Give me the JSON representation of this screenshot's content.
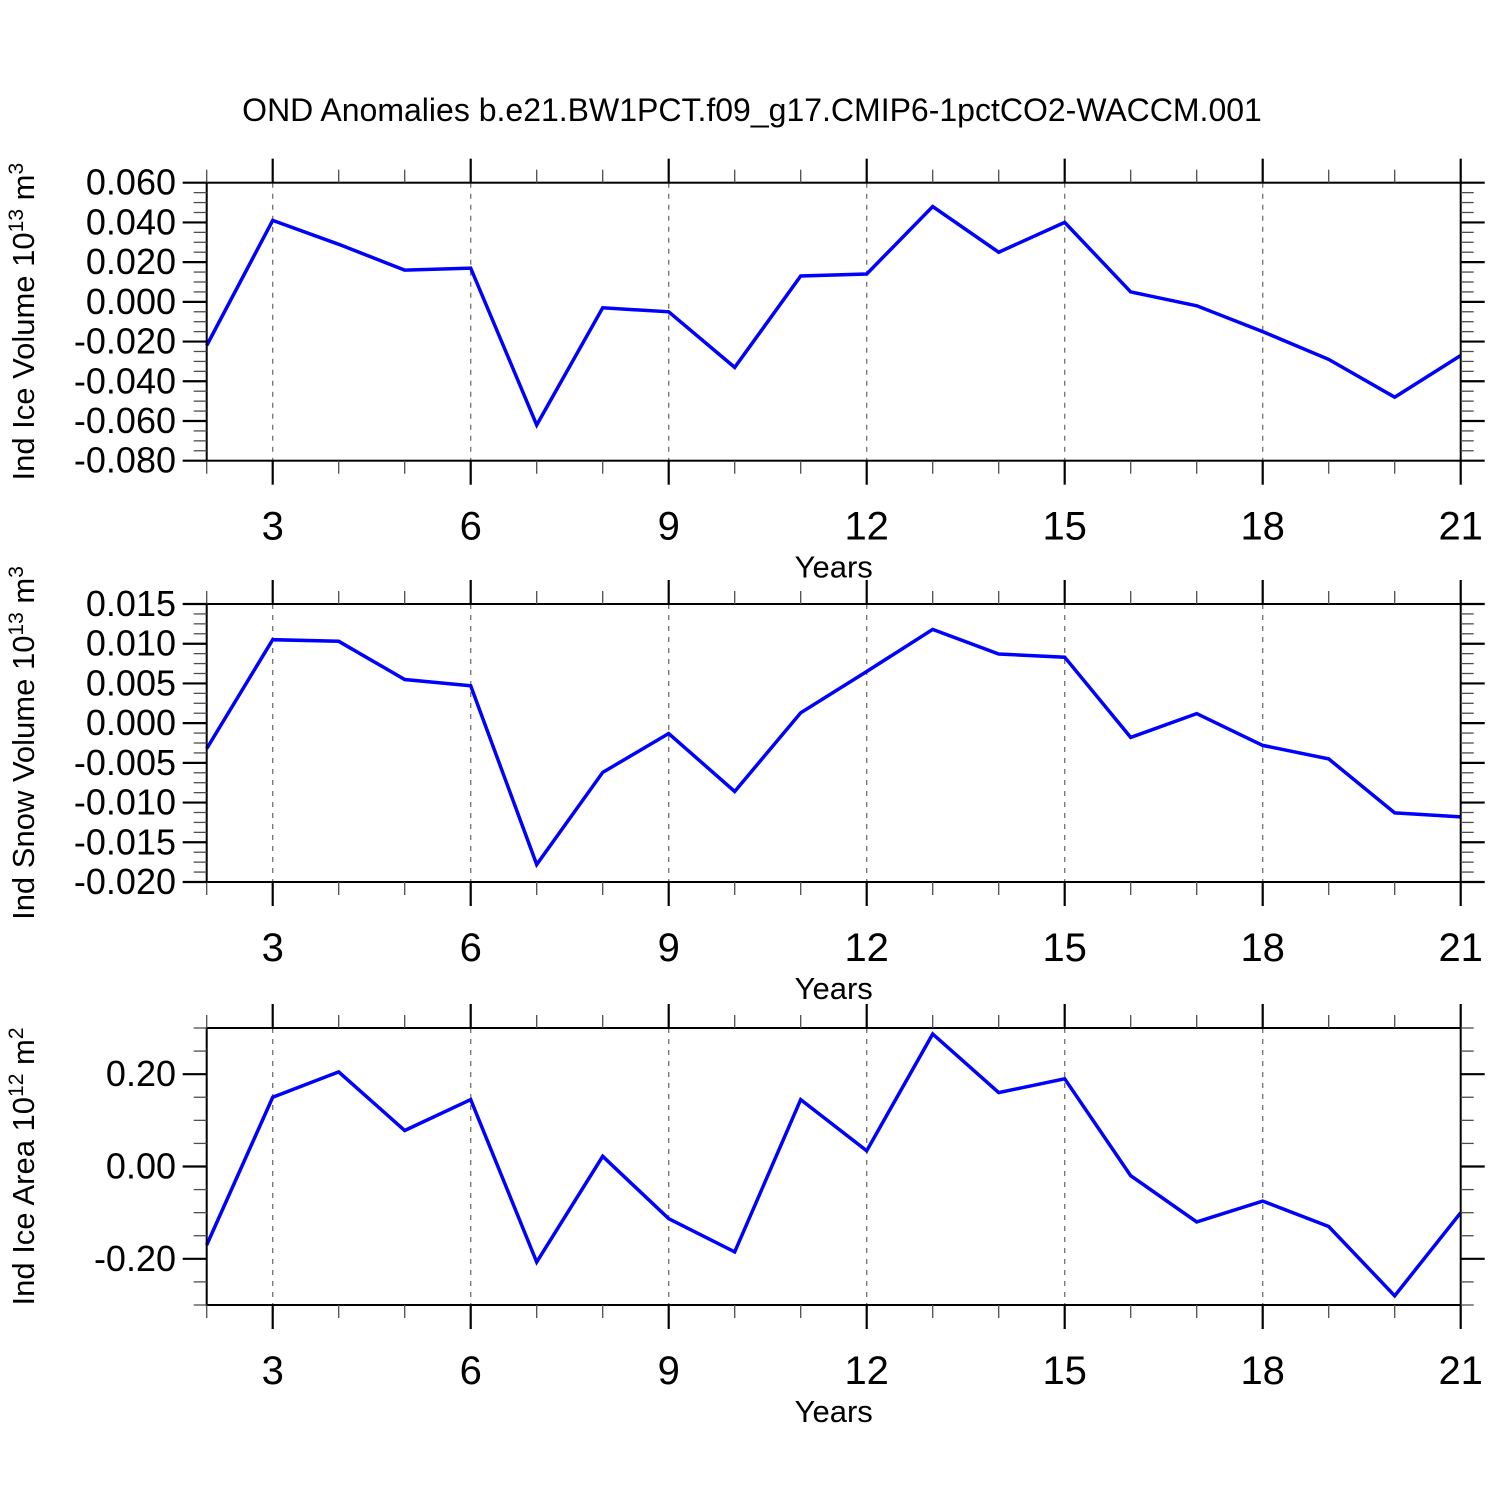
{
  "title": "OND Anomalies b.e21.BW1PCT.f09_g17.CMIP6-1pctCO2-WACCM.001",
  "line_color": "#0000ff",
  "chart_data": [
    {
      "type": "line",
      "name": "ice-volume",
      "title": "",
      "ylabel": "Ind Ice Volume 10^13 m^3",
      "ylabel_parts": [
        {
          "t": "Ind Ice Volume 10"
        },
        {
          "t": "13",
          "sup": true
        },
        {
          "t": " m"
        },
        {
          "t": "3",
          "sup": true
        }
      ],
      "xlabel": "Years",
      "color": "#0000ff",
      "x": [
        2,
        3,
        4,
        5,
        6,
        7,
        8,
        9,
        10,
        11,
        12,
        13,
        14,
        15,
        16,
        17,
        18,
        19,
        20,
        21
      ],
      "values": [
        -0.022,
        0.041,
        0.029,
        0.016,
        0.017,
        -0.062,
        -0.003,
        -0.005,
        -0.033,
        0.013,
        0.014,
        0.048,
        0.025,
        0.04,
        0.005,
        -0.002,
        -0.015,
        -0.029,
        -0.048,
        -0.027
      ],
      "xlim": [
        2,
        21
      ],
      "ylim": [
        -0.08,
        0.06
      ],
      "xticks": {
        "values": [
          3,
          6,
          9,
          12,
          15,
          18,
          21
        ],
        "labels": [
          "3",
          "6",
          "9",
          "12",
          "15",
          "18",
          "21"
        ]
      },
      "yticks": {
        "values": [
          0.06,
          0.04,
          0.02,
          0.0,
          -0.02,
          -0.04,
          -0.06,
          -0.08
        ],
        "labels": [
          "0.060",
          "0.040",
          "0.020",
          "0.000",
          "-0.020",
          "-0.040",
          "-0.060",
          "-0.080"
        ]
      },
      "ytick_minor_step": 0.005,
      "xtick_minor_step": 1,
      "grid_x": [
        3,
        6,
        9,
        12,
        15,
        18
      ],
      "grid_on": true,
      "legend": null
    },
    {
      "type": "line",
      "name": "snow-volume",
      "title": "",
      "ylabel": "Ind Snow Volume 10^13 m^3",
      "ylabel_parts": [
        {
          "t": "Ind Snow Volume 10"
        },
        {
          "t": "13",
          "sup": true
        },
        {
          "t": " m"
        },
        {
          "t": "3",
          "sup": true
        }
      ],
      "xlabel": "Years",
      "color": "#0000ff",
      "x": [
        2,
        3,
        4,
        5,
        6,
        7,
        8,
        9,
        10,
        11,
        12,
        13,
        14,
        15,
        16,
        17,
        18,
        19,
        20,
        21
      ],
      "values": [
        -0.0032,
        0.0105,
        0.0103,
        0.0055,
        0.0047,
        -0.0178,
        -0.0062,
        -0.0013,
        -0.0086,
        0.0013,
        0.0065,
        0.0118,
        0.0087,
        0.0083,
        -0.0018,
        0.0012,
        -0.0028,
        -0.0045,
        -0.0113,
        -0.0118
      ],
      "xlim": [
        2,
        21
      ],
      "ylim": [
        -0.02,
        0.015
      ],
      "xticks": {
        "values": [
          3,
          6,
          9,
          12,
          15,
          18,
          21
        ],
        "labels": [
          "3",
          "6",
          "9",
          "12",
          "15",
          "18",
          "21"
        ]
      },
      "yticks": {
        "values": [
          0.015,
          0.01,
          0.005,
          0.0,
          -0.005,
          -0.01,
          -0.015,
          -0.02
        ],
        "labels": [
          "0.015",
          "0.010",
          "0.005",
          "0.000",
          "-0.005",
          "-0.010",
          "-0.015",
          "-0.020"
        ]
      },
      "ytick_minor_step": 0.00125,
      "xtick_minor_step": 1,
      "grid_x": [
        3,
        6,
        9,
        12,
        15,
        18
      ],
      "grid_on": true,
      "legend": null
    },
    {
      "type": "line",
      "name": "ice-area",
      "title": "",
      "ylabel": "Ind Ice Area 10^12 m^2",
      "ylabel_parts": [
        {
          "t": "Ind Ice Area 10"
        },
        {
          "t": "12",
          "sup": true
        },
        {
          "t": " m"
        },
        {
          "t": "2",
          "sup": true
        }
      ],
      "xlabel": "Years",
      "color": "#0000ff",
      "x": [
        2,
        3,
        4,
        5,
        6,
        7,
        8,
        9,
        10,
        11,
        12,
        13,
        14,
        15,
        16,
        17,
        18,
        19,
        20,
        21
      ],
      "values": [
        -0.17,
        0.15,
        0.205,
        0.078,
        0.145,
        -0.207,
        0.022,
        -0.113,
        -0.185,
        0.145,
        0.034,
        0.287,
        0.16,
        0.19,
        -0.02,
        -0.12,
        -0.075,
        -0.13,
        -0.28,
        -0.1
      ],
      "xlim": [
        2,
        21
      ],
      "ylim": [
        -0.3,
        0.3
      ],
      "xticks": {
        "values": [
          3,
          6,
          9,
          12,
          15,
          18,
          21
        ],
        "labels": [
          "3",
          "6",
          "9",
          "12",
          "15",
          "18",
          "21"
        ]
      },
      "yticks": {
        "values": [
          0.2,
          0.0,
          -0.2
        ],
        "labels": [
          "0.20",
          "0.00",
          "-0.20"
        ]
      },
      "ytick_minor_step": 0.05,
      "xtick_minor_step": 1,
      "grid_x": [
        3,
        6,
        9,
        12,
        15,
        18
      ],
      "grid_on": true,
      "legend": null
    }
  ]
}
